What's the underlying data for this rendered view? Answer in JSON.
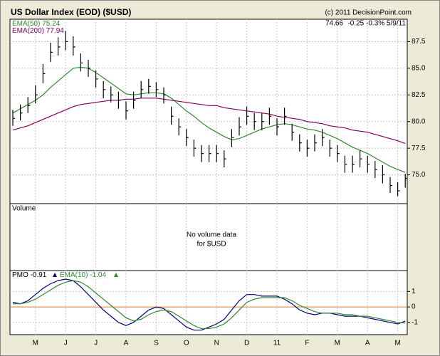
{
  "header": {
    "title": "US Dollar Index (EOD) ($USD)",
    "copyright": "(c) 2011 DecisionPoint.com",
    "quote": "-0.25 -0.3% 5/9/11"
  },
  "volume": {
    "label": "Volume",
    "note": [
      "No volume data",
      "for $USD"
    ]
  },
  "chart_data": [
    {
      "type": "ohlc",
      "categories": [
        null,
        null,
        null,
        "M",
        null,
        null,
        null,
        "J",
        null,
        null,
        null,
        "J",
        null,
        null,
        null,
        "A",
        null,
        null,
        null,
        "S",
        null,
        null,
        null,
        "O",
        null,
        null,
        null,
        "N",
        null,
        null,
        null,
        "D",
        null,
        null,
        null,
        "11",
        null,
        null,
        null,
        "F",
        null,
        null,
        null,
        "M",
        null,
        null,
        null,
        "A",
        null,
        null,
        null,
        "M",
        null
      ],
      "high": [
        81.1,
        81.6,
        82.3,
        83.4,
        85.4,
        87.4,
        87.9,
        88.5,
        88.0,
        86.4,
        85.8,
        84.8,
        83.8,
        83.3,
        82.8,
        81.9,
        82.8,
        83.8,
        84.0,
        83.7,
        83.2,
        81.4,
        80.3,
        79.3,
        78.3,
        77.8,
        77.8,
        77.8,
        77.3,
        79.3,
        80.4,
        81.4,
        80.8,
        80.8,
        81.3,
        80.3,
        81.3,
        79.8,
        78.8,
        78.3,
        78.8,
        79.3,
        78.3,
        77.8,
        76.8,
        76.8,
        77.3,
        76.8,
        76.3,
        75.9,
        74.8,
        74.3,
        75.1
      ],
      "low": [
        79.6,
        80.1,
        80.8,
        81.7,
        83.6,
        85.6,
        86.2,
        86.7,
        86.2,
        84.7,
        84.2,
        83.2,
        82.2,
        81.8,
        81.2,
        80.2,
        81.2,
        82.2,
        82.6,
        82.3,
        81.7,
        79.7,
        78.7,
        77.7,
        76.7,
        76.2,
        76.2,
        76.2,
        75.7,
        77.6,
        78.7,
        79.7,
        79.2,
        79.2,
        79.7,
        78.7,
        79.7,
        78.2,
        77.2,
        76.7,
        77.2,
        77.7,
        76.7,
        76.2,
        75.2,
        75.2,
        75.7,
        75.2,
        74.7,
        74.2,
        73.3,
        73.0,
        73.8
      ],
      "close": [
        80.3,
        80.8,
        81.5,
        82.5,
        84.5,
        86.5,
        87.0,
        87.5,
        87.0,
        85.5,
        85.0,
        84.0,
        83.0,
        82.5,
        82.0,
        81.0,
        82.0,
        83.0,
        83.3,
        83.0,
        82.5,
        80.5,
        79.5,
        78.5,
        77.5,
        77.0,
        77.0,
        77.0,
        76.5,
        78.5,
        79.5,
        80.5,
        80.0,
        80.0,
        80.5,
        79.5,
        80.5,
        79.0,
        78.0,
        77.5,
        78.0,
        78.5,
        77.5,
        77.0,
        76.0,
        76.0,
        76.5,
        76.0,
        75.5,
        75.0,
        74.0,
        73.5,
        74.66
      ],
      "color": "#000000",
      "series": [
        {
          "name": "EMA(50)",
          "color": "#2e8b2e",
          "values": [
            80.8,
            81.2,
            81.6,
            82.0,
            82.5,
            83.2,
            83.8,
            84.4,
            85.0,
            85.1,
            85.0,
            84.6,
            84.1,
            83.6,
            83.1,
            82.6,
            82.5,
            82.6,
            82.7,
            82.7,
            82.6,
            82.2,
            81.6,
            81.0,
            80.5,
            79.9,
            79.4,
            79.0,
            78.6,
            78.3,
            78.4,
            78.7,
            79.0,
            79.3,
            79.5,
            79.7,
            79.8,
            79.7,
            79.5,
            79.3,
            79.2,
            79.0,
            78.7,
            78.4,
            78.0,
            77.6,
            77.3,
            77.0,
            76.6,
            76.2,
            75.8,
            75.5,
            75.24
          ]
        },
        {
          "name": "EMA(200)",
          "color": "#800060",
          "values": [
            79.2,
            79.4,
            79.6,
            79.9,
            80.2,
            80.5,
            80.8,
            81.1,
            81.4,
            81.6,
            81.7,
            81.8,
            81.9,
            82.0,
            82.0,
            82.1,
            82.1,
            82.2,
            82.2,
            82.2,
            82.1,
            82.0,
            81.9,
            81.8,
            81.7,
            81.6,
            81.5,
            81.5,
            81.3,
            81.2,
            81.1,
            81.0,
            80.9,
            80.8,
            80.7,
            80.5,
            80.4,
            80.3,
            80.2,
            80.0,
            79.9,
            79.8,
            79.6,
            79.5,
            79.4,
            79.2,
            79.1,
            79.0,
            78.8,
            78.6,
            78.4,
            78.2,
            77.94
          ]
        }
      ],
      "ylim": [
        72.3,
        89.6
      ],
      "yticks": [
        {
          "value": 75,
          "label": "75.0"
        },
        77.5,
        {
          "value": 80,
          "label": "80.0"
        },
        82.5,
        {
          "value": 85,
          "label": "85.0"
        },
        87.5
      ],
      "grid": true
    },
    {
      "type": "line",
      "series": [
        {
          "name": "PMO",
          "color": "#000080",
          "values": [
            0.3,
            0.2,
            0.4,
            0.8,
            1.2,
            1.5,
            1.7,
            1.8,
            1.7,
            1.3,
            0.8,
            0.3,
            -0.2,
            -0.6,
            -1.0,
            -1.2,
            -1.0,
            -0.6,
            -0.2,
            0,
            -0.1,
            -0.5,
            -0.9,
            -1.3,
            -1.5,
            -1.5,
            -1.3,
            -1.1,
            -0.8,
            -0.2,
            0.4,
            0.8,
            0.8,
            0.7,
            0.7,
            0.7,
            0.5,
            0.2,
            -0.2,
            -0.4,
            -0.5,
            -0.4,
            -0.4,
            -0.5,
            -0.6,
            -0.6,
            -0.6,
            -0.7,
            -0.8,
            -0.9,
            -1.0,
            -1.1,
            -0.91
          ]
        },
        {
          "name": "EMA(10)",
          "color": "#2e8b2e",
          "values": [
            0.2,
            0.2,
            0.3,
            0.5,
            0.8,
            1.1,
            1.4,
            1.6,
            1.7,
            1.6,
            1.3,
            0.9,
            0.5,
            0.1,
            -0.3,
            -0.7,
            -0.9,
            -0.8,
            -0.5,
            -0.3,
            -0.2,
            -0.3,
            -0.6,
            -0.9,
            -1.2,
            -1.4,
            -1.4,
            -1.3,
            -1.1,
            -0.7,
            -0.2,
            0.3,
            0.5,
            0.6,
            0.6,
            0.6,
            0.6,
            0.4,
            0.1,
            -0.1,
            -0.3,
            -0.4,
            -0.4,
            -0.4,
            -0.5,
            -0.5,
            -0.6,
            -0.6,
            -0.7,
            -0.8,
            -0.9,
            -1.0,
            -1.04
          ]
        }
      ],
      "ylim": [
        -1.79,
        2.35
      ],
      "yticks": [
        1,
        0,
        -1
      ],
      "zero_line_color": "#e08030",
      "grid": true
    }
  ]
}
